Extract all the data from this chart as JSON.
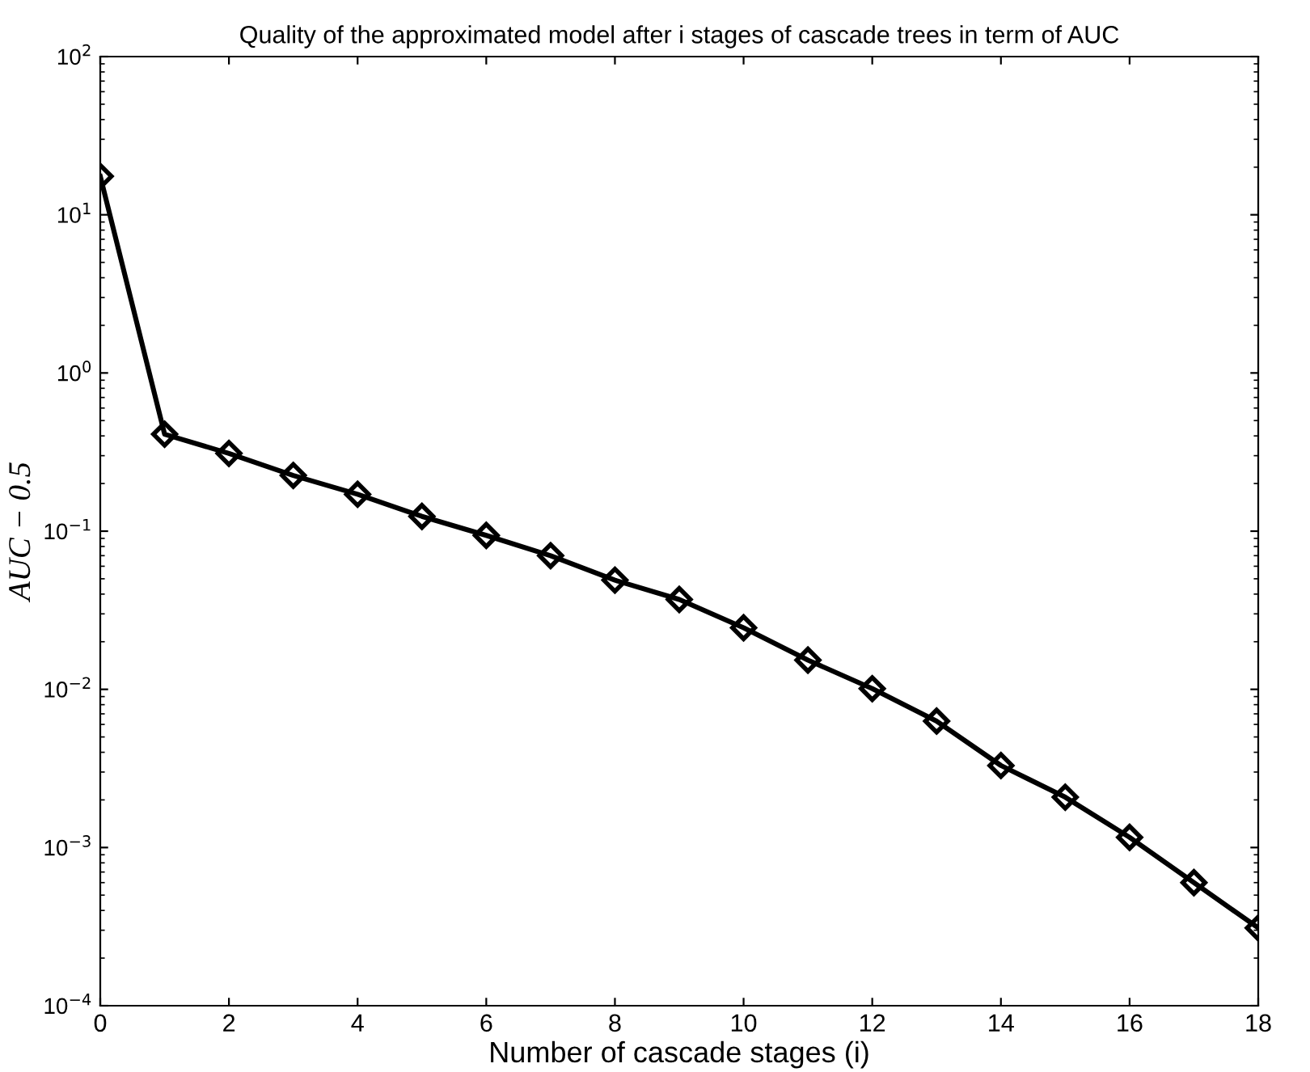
{
  "chart_data": {
    "type": "line",
    "title": "Quality of the approximated model after i stages of cascade trees in term of AUC",
    "xlabel": "Number of cascade stages (i)",
    "ylabel": "AUC − 0.5",
    "x": [
      0,
      1,
      2,
      3,
      4,
      5,
      6,
      7,
      8,
      9,
      10,
      11,
      12,
      13,
      14,
      15,
      16,
      17,
      18
    ],
    "series": [
      {
        "color": "#000000",
        "values": [
          17.5,
          0.41,
          0.31,
          0.225,
          0.171,
          0.124,
          0.094,
          0.07,
          0.049,
          0.037,
          0.0245,
          0.0153,
          0.0101,
          0.0063,
          0.0033,
          0.00208,
          0.00116,
          0.0006,
          0.00031
        ]
      }
    ],
    "log": "y",
    "xlim": [
      0,
      18
    ],
    "xticks": [
      0,
      2,
      4,
      6,
      8,
      10,
      12,
      14,
      16,
      18
    ],
    "ylim": [
      0.0001,
      100
    ],
    "yticks": [
      {
        "value": 0.0001,
        "label": "10$^{−4}$"
      },
      {
        "value": 0.001,
        "label": "10$^{−3}$"
      },
      {
        "value": 0.01,
        "label": "10$^{−2}$"
      },
      {
        "value": 0.1,
        "label": "10$^{−1}$"
      },
      {
        "value": 1,
        "label": "10$^{0}$"
      },
      {
        "value": 10,
        "label": "10$^{1}$"
      },
      {
        "value": 100,
        "label": "10$^{2}$"
      }
    ],
    "grid": false,
    "legend": false,
    "marker": "diamond",
    "line_style": "solid"
  }
}
